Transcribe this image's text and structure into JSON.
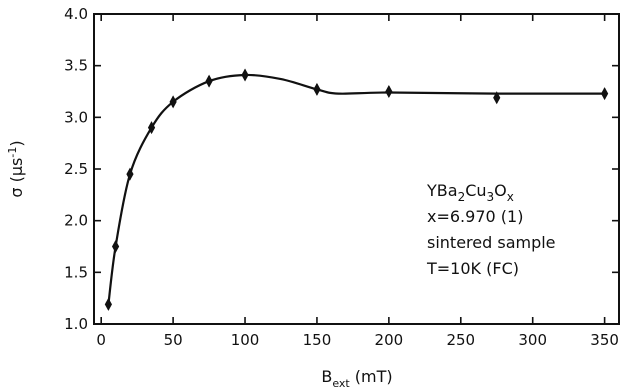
{
  "chart_data": {
    "type": "scatter",
    "xlabel": {
      "base": "B",
      "sub": "ext",
      "unit": " (mT)"
    },
    "ylabel": {
      "sym": "σ",
      "unit_pre": " (μs",
      "sup": "-1",
      "unit_post": ")"
    },
    "xlim": [
      -5,
      360
    ],
    "ylim": [
      1.0,
      4.0
    ],
    "xticks": [
      0,
      50,
      100,
      150,
      200,
      250,
      300,
      350
    ],
    "yticks": [
      1.0,
      1.5,
      2.0,
      2.5,
      3.0,
      3.5,
      4.0
    ],
    "xtick_labels": [
      "0",
      "50",
      "100",
      "150",
      "200",
      "250",
      "300",
      "350"
    ],
    "ytick_labels": [
      "1.0",
      "1.5",
      "2.0",
      "2.5",
      "3.0",
      "3.5",
      "4.0"
    ],
    "grid": false,
    "series": [
      {
        "points": [
          {
            "x": 5,
            "y": 1.19,
            "err": 0.05
          },
          {
            "x": 10,
            "y": 1.75,
            "err": 0.05
          },
          {
            "x": 20,
            "y": 2.45,
            "err": 0.05
          },
          {
            "x": 35,
            "y": 2.9,
            "err": 0.05
          },
          {
            "x": 50,
            "y": 3.15,
            "err": 0.05
          },
          {
            "x": 75,
            "y": 3.35,
            "err": 0.05
          },
          {
            "x": 100,
            "y": 3.41,
            "err": 0.05
          },
          {
            "x": 150,
            "y": 3.27,
            "err": 0.05
          },
          {
            "x": 200,
            "y": 3.25,
            "err": 0.05
          },
          {
            "x": 275,
            "y": 3.19,
            "err": 0.05
          },
          {
            "x": 350,
            "y": 3.23,
            "err": 0.05
          }
        ],
        "curve": [
          [
            5,
            1.19
          ],
          [
            10,
            1.75
          ],
          [
            20,
            2.45
          ],
          [
            35,
            2.9
          ],
          [
            50,
            3.15
          ],
          [
            75,
            3.35
          ],
          [
            100,
            3.41
          ],
          [
            125,
            3.37
          ],
          [
            150,
            3.27
          ],
          [
            165,
            3.23
          ],
          [
            200,
            3.24
          ],
          [
            275,
            3.23
          ],
          [
            350,
            3.23
          ]
        ]
      }
    ],
    "annotation": {
      "formula": [
        {
          "t": "YBa",
          "s": ""
        },
        {
          "t": "2",
          "s": "sub"
        },
        {
          "t": "Cu",
          "s": ""
        },
        {
          "t": "3",
          "s": "sub"
        },
        {
          "t": "O",
          "s": ""
        },
        {
          "t": "x",
          "s": "sub"
        }
      ],
      "lines": [
        "x=6.970 (1)",
        "sintered sample",
        "T=10K (FC)"
      ]
    }
  }
}
